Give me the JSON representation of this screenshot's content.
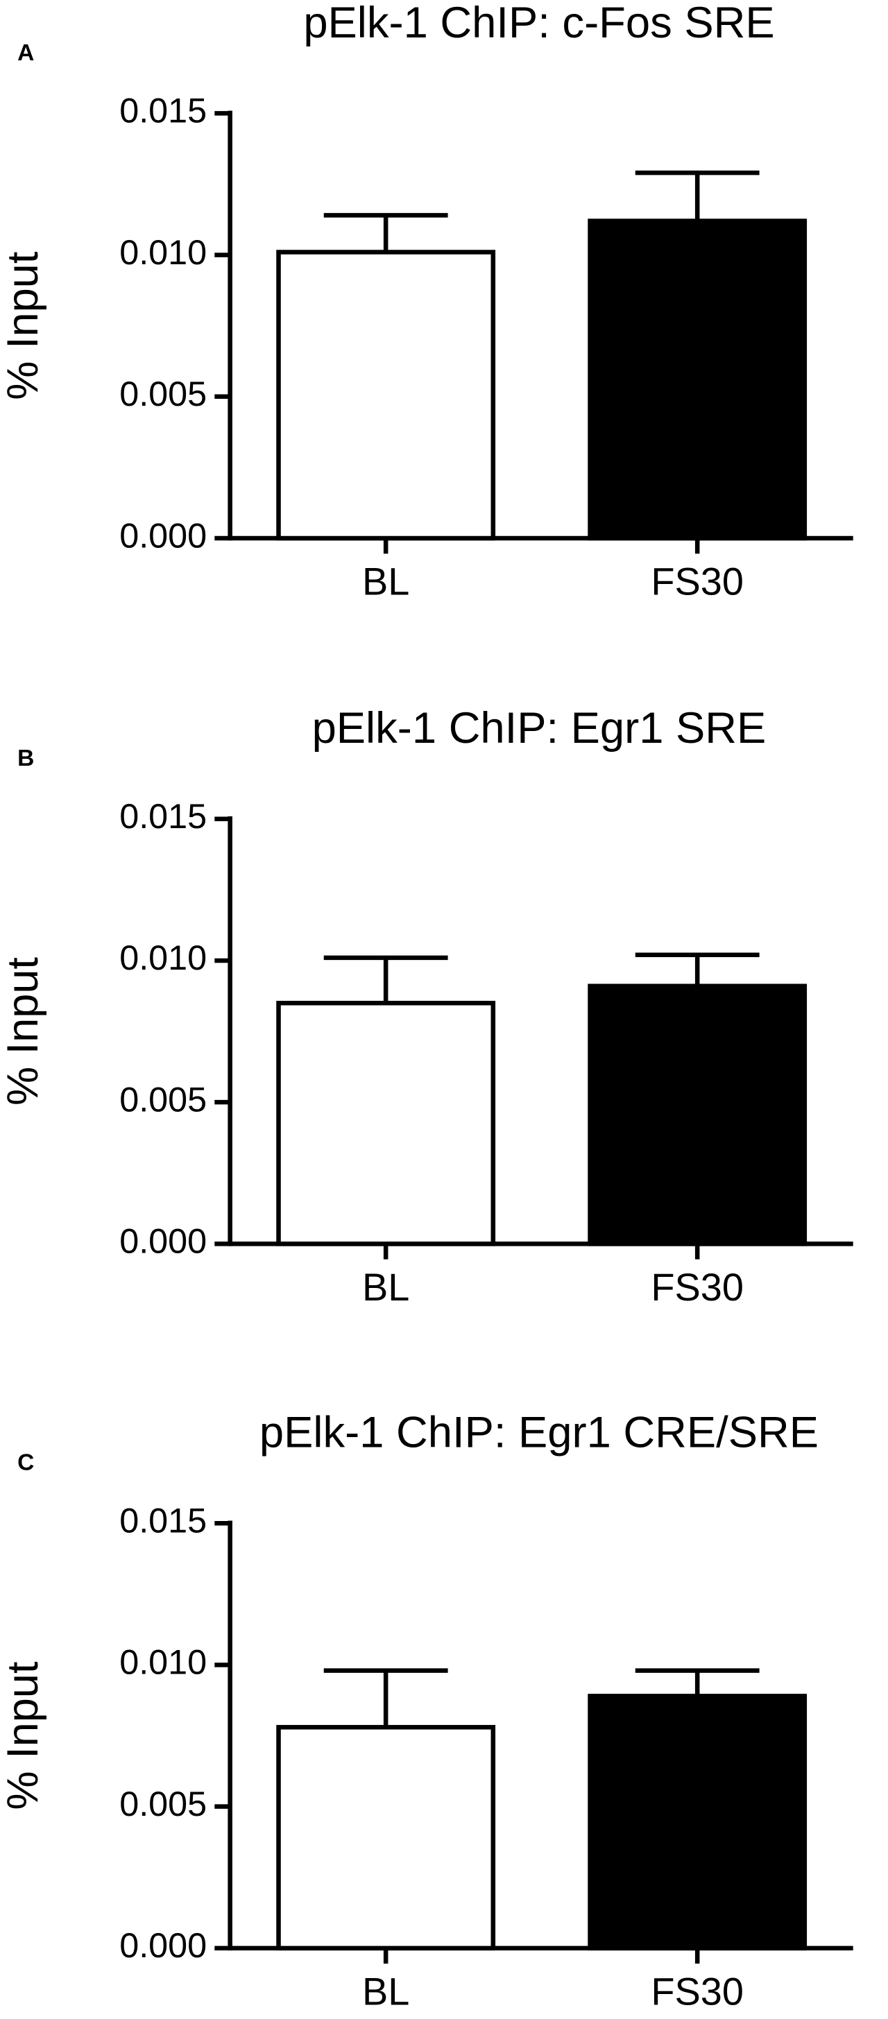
{
  "chart_data": [
    {
      "type": "bar",
      "panel_label": "A",
      "title": "pElk-1 ChIP: c-Fos SRE",
      "y_label": "% Input",
      "categories": [
        "BL",
        "FS30"
      ],
      "values": [
        0.0101,
        0.0112
      ],
      "errors": [
        0.0013,
        0.0017
      ],
      "colors": [
        "#ffffff",
        "#000000"
      ],
      "ylim": [
        0,
        0.015
      ],
      "yticks": [
        {
          "value": 0,
          "label": "0.000"
        },
        0.005,
        {
          "value": 0.01,
          "label": "0.010"
        },
        0.015
      ]
    },
    {
      "type": "bar",
      "panel_label": "B",
      "title": "pElk-1 ChIP: Egr1 SRE",
      "y_label": "% Input",
      "categories": [
        "BL",
        "FS30"
      ],
      "values": [
        0.0085,
        0.0091
      ],
      "errors": [
        0.0016,
        0.0011
      ],
      "colors": [
        "#ffffff",
        "#000000"
      ],
      "ylim": [
        0,
        0.015
      ],
      "yticks": [
        {
          "value": 0,
          "label": "0.000"
        },
        0.005,
        {
          "value": 0.01,
          "label": "0.010"
        },
        0.015
      ]
    },
    {
      "type": "bar",
      "panel_label": "C",
      "title": "pElk-1 ChIP: Egr1 CRE/SRE",
      "y_label": "% Input",
      "categories": [
        "BL",
        "FS30"
      ],
      "values": [
        0.0078,
        0.0089
      ],
      "errors": [
        0.002,
        0.0009
      ],
      "colors": [
        "#ffffff",
        "#000000"
      ],
      "ylim": [
        0,
        0.015
      ],
      "yticks": [
        {
          "value": 0,
          "label": "0.000"
        },
        0.005,
        {
          "value": 0.01,
          "label": "0.010"
        },
        0.015
      ]
    }
  ]
}
